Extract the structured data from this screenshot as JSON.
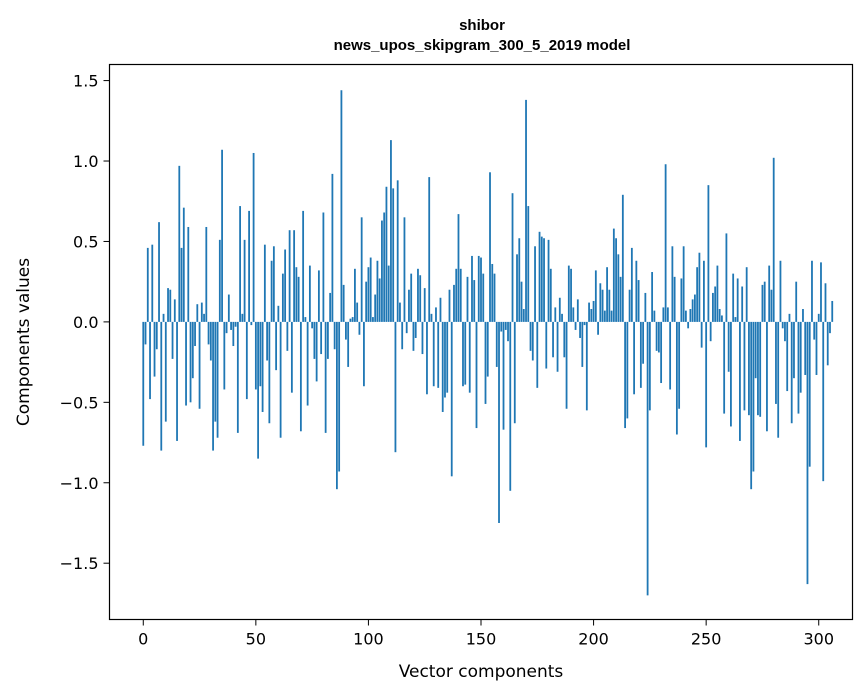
{
  "chart_data": {
    "type": "bar",
    "title": "shibor",
    "subtitle": "news_upos_skipgram_300_5_2019 model",
    "xlabel": "Vector components",
    "ylabel": "Components values",
    "xlim": [
      -15,
      315
    ],
    "ylim": [
      -1.85,
      1.6
    ],
    "xticks": [
      0,
      50,
      100,
      150,
      200,
      250,
      300
    ],
    "yticks": [
      -1.5,
      -1.0,
      -0.5,
      0.0,
      0.5,
      1.0,
      1.5
    ],
    "ytick_labels": [
      "−1.5",
      "−1.0",
      "−0.5",
      "0.0",
      "0.5",
      "1.0",
      "1.5"
    ],
    "bar_color": "#1f77b4",
    "grid": false,
    "values": [
      -0.77,
      -0.14,
      0.46,
      -0.48,
      0.48,
      -0.34,
      -0.17,
      0.62,
      -0.8,
      0.05,
      -0.62,
      0.21,
      0.2,
      -0.23,
      0.14,
      -0.74,
      0.97,
      0.46,
      0.71,
      -0.52,
      0.59,
      -0.5,
      -0.35,
      -0.15,
      0.11,
      -0.54,
      0.12,
      0.05,
      0.59,
      -0.14,
      -0.24,
      -0.8,
      -0.62,
      -0.72,
      0.51,
      1.07,
      -0.42,
      -0.07,
      0.17,
      -0.05,
      -0.15,
      -0.03,
      -0.69,
      0.72,
      0.05,
      0.51,
      -0.48,
      0.69,
      -0.02,
      1.05,
      -0.42,
      -0.85,
      -0.4,
      -0.56,
      0.48,
      -0.24,
      -0.63,
      0.38,
      0.47,
      -0.3,
      0.1,
      -0.72,
      0.3,
      0.45,
      -0.18,
      0.57,
      -0.44,
      0.57,
      0.34,
      0.28,
      -0.68,
      0.69,
      0.03,
      -0.52,
      0.35,
      -0.04,
      -0.23,
      -0.37,
      0.32,
      -0.2,
      0.68,
      -0.69,
      -0.23,
      0.18,
      0.92,
      -0.17,
      -1.04,
      -0.93,
      1.44,
      0.23,
      -0.11,
      -0.28,
      0.02,
      0.03,
      0.33,
      0.12,
      -0.08,
      0.65,
      -0.4,
      0.25,
      0.34,
      0.4,
      0.03,
      0.17,
      0.38,
      0.27,
      0.63,
      0.68,
      0.84,
      0.35,
      1.13,
      0.83,
      -0.81,
      0.88,
      0.12,
      -0.17,
      0.65,
      -0.07,
      0.2,
      0.3,
      -0.18,
      -0.1,
      0.33,
      0.29,
      -0.2,
      0.21,
      -0.45,
      0.9,
      0.05,
      -0.4,
      0.09,
      -0.41,
      0.15,
      -0.56,
      -0.47,
      -0.44,
      0.2,
      -0.96,
      0.23,
      0.33,
      0.67,
      0.33,
      -0.4,
      -0.39,
      0.28,
      -0.44,
      0.41,
      0.26,
      -0.66,
      0.41,
      0.4,
      0.3,
      -0.51,
      -0.34,
      0.93,
      0.36,
      0.3,
      -0.28,
      -1.25,
      -0.06,
      -0.67,
      -0.05,
      -0.12,
      -1.05,
      0.8,
      -0.63,
      0.42,
      0.52,
      0.25,
      0.08,
      1.38,
      0.72,
      -0.18,
      -0.24,
      0.47,
      -0.41,
      0.56,
      0.53,
      0.52,
      -0.29,
      0.51,
      0.33,
      -0.22,
      0.09,
      -0.31,
      0.15,
      0.05,
      -0.22,
      -0.54,
      0.35,
      0.33,
      0.09,
      -0.05,
      0.14,
      -0.1,
      -0.28,
      -0.02,
      -0.55,
      0.12,
      0.08,
      0.13,
      0.32,
      -0.08,
      0.24,
      0.2,
      0.07,
      0.34,
      0.2,
      0.07,
      0.58,
      0.52,
      0.42,
      0.28,
      0.79,
      -0.66,
      -0.6,
      0.2,
      0.46,
      -0.45,
      0.38,
      0.26,
      -0.41,
      -0.26,
      0.18,
      -1.7,
      -0.55,
      0.31,
      0.07,
      -0.18,
      -0.19,
      -0.38,
      0.09,
      0.98,
      0.09,
      -0.42,
      0.47,
      0.28,
      -0.7,
      -0.54,
      0.27,
      0.47,
      0.07,
      -0.04,
      0.08,
      0.14,
      0.17,
      0.34,
      0.43,
      -0.16,
      0.38,
      -0.78,
      0.85,
      -0.12,
      0.18,
      0.22,
      0.35,
      0.08,
      0.04,
      -0.57,
      0.55,
      -0.31,
      -0.65,
      0.3,
      0.03,
      0.27,
      -0.74,
      0.22,
      -0.55,
      0.34,
      -0.58,
      -1.04,
      -0.93,
      -0.35,
      -0.58,
      -0.59,
      0.23,
      0.25,
      -0.68,
      0.35,
      0.2,
      1.02,
      -0.51,
      -0.72,
      0.38,
      -0.04,
      -0.12,
      -0.43,
      0.05,
      -0.63,
      -0.35,
      0.25,
      -0.57,
      -0.44,
      0.08,
      -0.33,
      -1.63,
      -0.9,
      0.38,
      -0.11,
      -0.33,
      0.05,
      0.37,
      -0.99,
      0.24,
      -0.27,
      -0.07,
      0.13
    ]
  }
}
